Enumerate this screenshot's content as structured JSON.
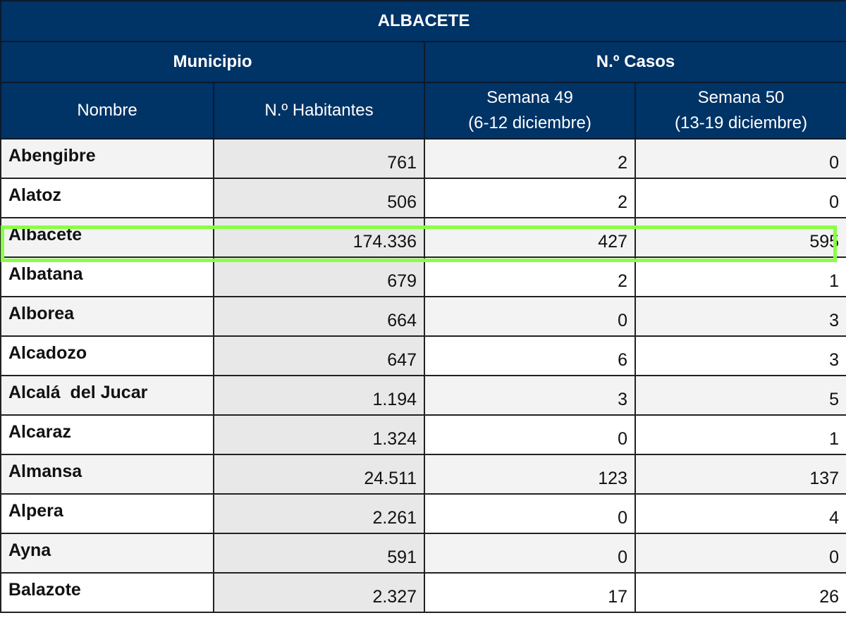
{
  "table": {
    "title": "ALBACETE",
    "groups": {
      "municipio": "Municipio",
      "casos": "N.º Casos"
    },
    "columns": {
      "nombre": "Nombre",
      "habitantes": "N.º Habitantes",
      "semana49": {
        "line1": "Semana 49",
        "line2": "(6-12 diciembre)"
      },
      "semana50": {
        "line1": "Semana 50",
        "line2": "(13-19 diciembre)"
      }
    },
    "rows": [
      {
        "nombre": "Abengibre",
        "habitantes": "761",
        "s49": "2",
        "s50": "0"
      },
      {
        "nombre": "Alatoz",
        "habitantes": "506",
        "s49": "2",
        "s50": "0"
      },
      {
        "nombre": "Albacete",
        "habitantes": "174.336",
        "s49": "427",
        "s50": "595"
      },
      {
        "nombre": "Albatana",
        "habitantes": "679",
        "s49": "2",
        "s50": "1"
      },
      {
        "nombre": "Alborea",
        "habitantes": "664",
        "s49": "0",
        "s50": "3"
      },
      {
        "nombre": "Alcadozo",
        "habitantes": "647",
        "s49": "6",
        "s50": "3"
      },
      {
        "nombre": "Alcalá  del Jucar",
        "habitantes": "1.194",
        "s49": "3",
        "s50": "5"
      },
      {
        "nombre": "Alcaraz",
        "habitantes": "1.324",
        "s49": "0",
        "s50": "1"
      },
      {
        "nombre": "Almansa",
        "habitantes": "24.511",
        "s49": "123",
        "s50": "137"
      },
      {
        "nombre": "Alpera",
        "habitantes": "2.261",
        "s49": "0",
        "s50": "4"
      },
      {
        "nombre": "Ayna",
        "habitantes": "591",
        "s49": "0",
        "s50": "0"
      },
      {
        "nombre": "Balazote",
        "habitantes": "2.327",
        "s49": "17",
        "s50": "26"
      }
    ],
    "highlighted_row": "Albacete"
  },
  "colors": {
    "header_bg": "#003366",
    "header_text": "#ffffff",
    "row_stripe": "#f3f3f3",
    "habitantes_bg": "#e8e8e8",
    "highlight": "#88ff44"
  }
}
